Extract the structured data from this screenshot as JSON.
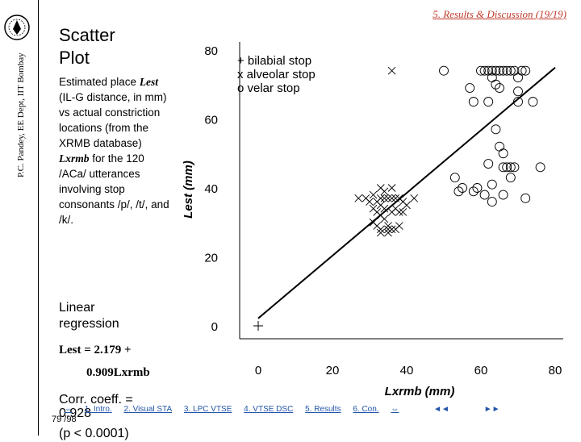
{
  "sidebar": {
    "text": "P.C. Pandey, EE Dept, IIT Bombay"
  },
  "header": {
    "link": "5. Results & Discussion (19/19)"
  },
  "slide": {
    "title_line1": "Scatter",
    "title_line2": "Plot",
    "desc_part1": "Estimated place ",
    "desc_lest": "Lest",
    "desc_part2": " (IL-G distance, in mm) vs actual constriction locations (from the XRMB database) ",
    "desc_lxrmb": "Lxrmb",
    "desc_part3": " for the 120 /ACa/ utterances involving stop consonants /p/, /t/, and /k/.",
    "linear_line1": "Linear",
    "linear_line2": "regression",
    "eq_line1": "Lest = 2.179 +",
    "eq_line2": "0.909Lxrmb",
    "corr_line1": "Corr. coeff. =",
    "corr_line2": "0.928",
    "pval": "(p < 0.0001)"
  },
  "chart_data": {
    "type": "scatter",
    "xlabel": "Lxrmb  (mm)",
    "ylabel": "Lest  (mm)",
    "xlim": [
      0,
      80
    ],
    "ylim": [
      0,
      80
    ],
    "x_ticks": [
      "0",
      "20",
      "40",
      "60",
      "80"
    ],
    "y_ticks": [
      "0",
      "20",
      "40",
      "60",
      "80"
    ],
    "legend": [
      "+ bilabial stop",
      "x alveolar stop",
      "o velar stop"
    ],
    "legend_position": "top-left",
    "regression": {
      "intercept": 2.179,
      "slope": 0.909
    },
    "series": [
      {
        "name": "bilabial stop",
        "marker": "+",
        "points": [
          [
            0,
            0
          ]
        ]
      },
      {
        "name": "alveolar stop",
        "marker": "x",
        "points": [
          [
            27,
            37
          ],
          [
            29,
            37
          ],
          [
            31,
            38
          ],
          [
            32,
            36
          ],
          [
            33,
            37
          ],
          [
            34,
            37
          ],
          [
            35,
            37
          ],
          [
            36,
            37
          ],
          [
            37,
            37
          ],
          [
            38,
            37
          ],
          [
            39,
            36
          ],
          [
            42,
            37
          ],
          [
            33,
            40
          ],
          [
            36,
            40
          ],
          [
            34,
            39
          ],
          [
            33,
            35
          ],
          [
            34,
            34
          ],
          [
            37,
            34
          ],
          [
            38,
            33
          ],
          [
            39,
            33
          ],
          [
            32,
            33
          ],
          [
            33,
            32
          ],
          [
            34,
            31
          ],
          [
            36,
            33
          ],
          [
            35,
            29
          ],
          [
            32,
            29
          ],
          [
            33,
            28
          ],
          [
            35,
            28
          ],
          [
            36,
            28
          ],
          [
            31,
            30
          ],
          [
            33,
            27
          ],
          [
            35,
            27
          ],
          [
            37,
            28
          ],
          [
            38,
            29
          ],
          [
            36,
            74
          ],
          [
            40,
            35
          ],
          [
            30,
            36
          ],
          [
            31,
            34
          ]
        ]
      },
      {
        "name": "velar stop",
        "marker": "o",
        "points": [
          [
            60,
            74
          ],
          [
            61,
            74
          ],
          [
            62,
            74
          ],
          [
            63,
            74
          ],
          [
            63,
            72
          ],
          [
            64,
            70
          ],
          [
            64,
            74
          ],
          [
            65,
            74
          ],
          [
            65,
            69
          ],
          [
            66,
            74
          ],
          [
            67,
            74
          ],
          [
            68,
            74
          ],
          [
            69,
            74
          ],
          [
            70,
            72
          ],
          [
            70,
            68
          ],
          [
            71,
            74
          ],
          [
            72,
            74
          ],
          [
            70,
            65
          ],
          [
            62,
            65
          ],
          [
            58,
            65
          ],
          [
            64,
            57
          ],
          [
            65,
            52
          ],
          [
            66,
            50
          ],
          [
            66,
            46
          ],
          [
            67,
            46
          ],
          [
            68,
            46
          ],
          [
            69,
            46
          ],
          [
            68,
            43
          ],
          [
            62,
            47
          ],
          [
            63,
            41
          ],
          [
            61,
            38
          ],
          [
            63,
            36
          ],
          [
            66,
            38
          ],
          [
            59,
            40
          ],
          [
            58,
            39
          ],
          [
            50,
            74
          ],
          [
            57,
            69
          ],
          [
            74,
            65
          ],
          [
            76,
            46
          ],
          [
            72,
            37
          ],
          [
            54,
            39
          ],
          [
            55,
            40
          ],
          [
            53,
            43
          ]
        ]
      }
    ]
  },
  "footer": {
    "items": [
      "⇔",
      "1. Intro.",
      "2. Visual STA",
      "3. LPC VTSE",
      "4. VTSE DSC",
      "5. Results",
      "6. Con.",
      "⇔"
    ],
    "prev": "◄◄",
    "next": "►►",
    "page": "79 /98"
  }
}
